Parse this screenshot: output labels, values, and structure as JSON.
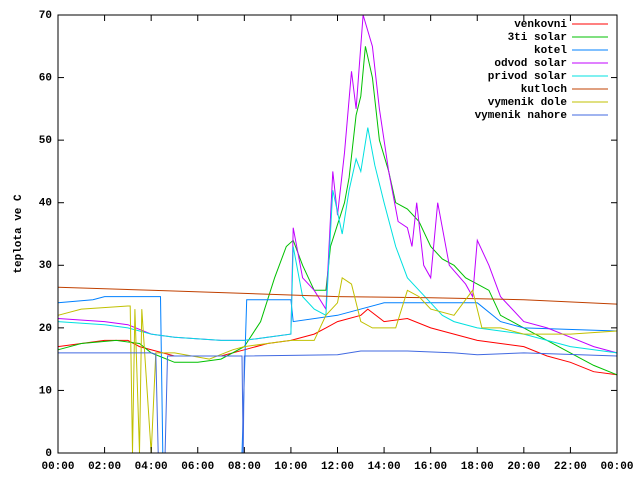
{
  "chart_data": {
    "type": "line",
    "y_label": "teplota ve C",
    "xlim": [
      0,
      24
    ],
    "ylim": [
      0,
      70
    ],
    "xticks": [
      {
        "value": 0,
        "label": "00:00"
      },
      {
        "value": 2,
        "label": "02:00"
      },
      {
        "value": 4,
        "label": "04:00"
      },
      {
        "value": 6,
        "label": "06:00"
      },
      {
        "value": 8,
        "label": "08:00"
      },
      {
        "value": 10,
        "label": "10:00"
      },
      {
        "value": 12,
        "label": "12:00"
      },
      {
        "value": 14,
        "label": "14:00"
      },
      {
        "value": 16,
        "label": "16:00"
      },
      {
        "value": 18,
        "label": "18:00"
      },
      {
        "value": 20,
        "label": "20:00"
      },
      {
        "value": 22,
        "label": "22:00"
      },
      {
        "value": 24,
        "label": "00:00"
      }
    ],
    "yticks": [
      0,
      10,
      20,
      30,
      40,
      50,
      60,
      70
    ],
    "legend": "top-right",
    "series": [
      {
        "name": "venkovni",
        "color": "#ff0000",
        "x": [
          0,
          1,
          2,
          3,
          3.5,
          4.5,
          5,
          7,
          8,
          9,
          10,
          11,
          11.5,
          12,
          13,
          13.3,
          14,
          15,
          16,
          17,
          18,
          19,
          20,
          21,
          22,
          23,
          24
        ],
        "values": [
          17,
          17.5,
          18,
          18,
          17,
          16,
          15.5,
          15.5,
          16.5,
          17.5,
          18,
          19,
          20,
          21,
          22,
          23,
          21,
          21.5,
          20,
          19,
          18,
          17.5,
          17,
          15.5,
          14.5,
          13,
          12.5
        ]
      },
      {
        "name": "3ti solar",
        "color": "#00c000",
        "x": [
          0,
          1,
          2.5,
          3.5,
          4,
          5,
          6,
          7,
          8,
          8.7,
          9.3,
          9.8,
          10.1,
          10.5,
          11,
          11.5,
          11.7,
          12.3,
          12.5,
          12.8,
          13,
          13.2,
          13.5,
          13.8,
          14.2,
          14.5,
          15,
          15.5,
          16,
          16.5,
          17,
          17.5,
          18,
          18.5,
          19,
          20,
          21,
          22,
          23,
          24
        ],
        "values": [
          16.5,
          17.5,
          18,
          17.5,
          16,
          14.5,
          14.5,
          15,
          17,
          21,
          28,
          33,
          34,
          30,
          26,
          26,
          33,
          40,
          44,
          54,
          57,
          65,
          60,
          50,
          45,
          40,
          39,
          37,
          33,
          31,
          30,
          28,
          27,
          26,
          22,
          20,
          18,
          16,
          14,
          12.5
        ]
      },
      {
        "name": "kotel",
        "color": "#0080ff",
        "x": [
          0,
          1.5,
          2,
          4.4,
          4.5,
          4.6,
          7.9,
          8.1,
          10,
          10.1,
          12,
          14,
          18,
          19,
          20,
          24
        ],
        "values": [
          24,
          24.5,
          25,
          25,
          0,
          null,
          0,
          24.5,
          24.5,
          21,
          22,
          24,
          24,
          21,
          20,
          19.5
        ]
      },
      {
        "name": "odvod solar",
        "color": "#c000ff",
        "x": [
          0,
          2,
          3,
          4,
          5,
          7,
          8,
          9,
          10,
          10.1,
          10.5,
          11,
          11.5,
          11.8,
          12,
          12.3,
          12.6,
          12.8,
          13.1,
          13.5,
          13.8,
          14.2,
          14.6,
          15,
          15.2,
          15.4,
          15.7,
          16,
          16.3,
          16.8,
          17.5,
          17.8,
          18,
          18.5,
          19,
          20,
          21,
          22,
          23,
          24
        ],
        "values": [
          21.5,
          21,
          20.5,
          19,
          18.5,
          18,
          18,
          18.5,
          19,
          36,
          28,
          26,
          23,
          45,
          38,
          48,
          61,
          55,
          70,
          65,
          55,
          45,
          37,
          36,
          33,
          40,
          30,
          28,
          40,
          30,
          27,
          25,
          34,
          30,
          25,
          21,
          20,
          18.5,
          17,
          16
        ]
      },
      {
        "name": "privod solar",
        "color": "#00e0e0",
        "x": [
          0,
          2,
          3,
          4,
          5,
          7,
          8,
          9,
          10,
          10.1,
          10.5,
          11,
          11.5,
          11.8,
          12.2,
          12.5,
          12.8,
          13,
          13.3,
          13.6,
          14,
          14.5,
          15,
          15.5,
          16,
          16.5,
          17,
          18,
          19,
          20,
          21,
          22,
          23,
          24
        ],
        "values": [
          21,
          20.5,
          20,
          19,
          18.5,
          18,
          18,
          18.5,
          19,
          33,
          25,
          23,
          22,
          42,
          35,
          42,
          47,
          45,
          52,
          46,
          40,
          33,
          28,
          26,
          24,
          22,
          21,
          20,
          19.5,
          19,
          18,
          17,
          16.5,
          16
        ]
      },
      {
        "name": "kutloch",
        "color": "#c04000",
        "x": [
          0,
          4,
          8,
          12,
          16,
          20,
          24
        ],
        "values": [
          26.5,
          26,
          25.5,
          25,
          24.8,
          24.5,
          23.8
        ]
      },
      {
        "name": "vymenik dole",
        "color": "#c0c000",
        "x": [
          0,
          1,
          3,
          3.1,
          3.2,
          3.3,
          3.5,
          3.6,
          4,
          4.2,
          5,
          6.5,
          7.5,
          8,
          9,
          10,
          11,
          11.5,
          12,
          12.2,
          12.6,
          13,
          13.5,
          14.5,
          15,
          15.5,
          16,
          17,
          17.8,
          18.2,
          19,
          20,
          22,
          24
        ],
        "values": [
          22,
          23,
          23.5,
          23.5,
          0,
          23,
          0,
          23,
          0,
          16,
          16,
          15,
          16.5,
          17,
          17.5,
          18,
          18,
          22,
          24,
          28,
          27,
          21,
          20,
          20,
          26,
          25,
          23,
          22,
          26,
          20,
          20,
          19,
          19,
          19.5
        ]
      },
      {
        "name": "vymenik nahore",
        "color": "#4169e1",
        "x": [
          0,
          4,
          4.2,
          4.3,
          4.6,
          4.7,
          7.9,
          7.95,
          8,
          12,
          13,
          15,
          17,
          18,
          20,
          24
        ],
        "values": [
          16,
          16,
          15.8,
          0,
          0,
          15.5,
          15.5,
          0,
          15.5,
          15.7,
          16.3,
          16.3,
          16,
          15.7,
          16,
          15.5
        ]
      }
    ]
  }
}
